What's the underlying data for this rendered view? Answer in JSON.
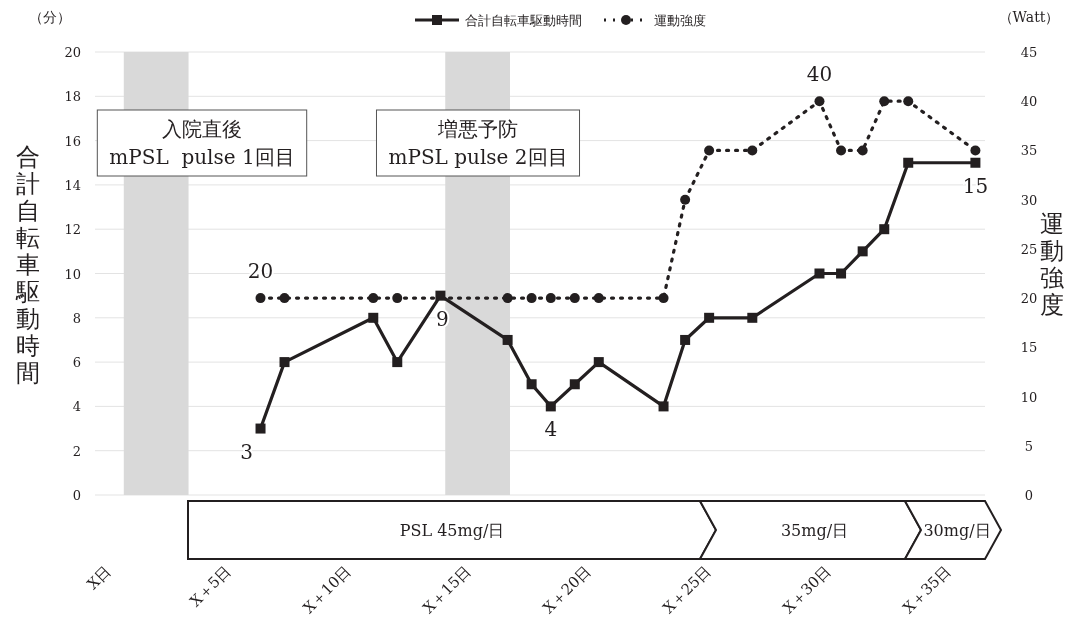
{
  "chart_data": {
    "type": "line",
    "xlim": [
      -0.7,
      36.4
    ],
    "xticks": [
      {
        "value": 0,
        "label": "X日"
      },
      {
        "value": 5,
        "label": "X＋5日"
      },
      {
        "value": 10,
        "label": "X＋10日"
      },
      {
        "value": 15,
        "label": "X＋15日"
      },
      {
        "value": 20,
        "label": "X＋20日"
      },
      {
        "value": 25,
        "label": "X＋25日"
      },
      {
        "value": 30,
        "label": "X＋30日"
      },
      {
        "value": 35,
        "label": "X＋35日"
      }
    ],
    "ylim": [
      0,
      20
    ],
    "yticks": [
      0,
      2,
      4,
      6,
      8,
      10,
      12,
      14,
      16,
      18,
      20
    ],
    "y2lim": [
      0,
      45
    ],
    "y2ticks": [
      0,
      5,
      10,
      15,
      20,
      25,
      30,
      35,
      40,
      45
    ],
    "ylabel": "合計自転車駆動時間",
    "y2label": "運動強度",
    "grid": "y",
    "legend": "top",
    "x": [
      6.2,
      7.2,
      10.9,
      11.9,
      13.7,
      16.5,
      17.5,
      18.3,
      19.3,
      20.3,
      23.0,
      23.9,
      24.9,
      26.7,
      29.5,
      30.4,
      31.3,
      32.2,
      33.2,
      36.0
    ],
    "series": [
      {
        "name": "合計自転車駆動時間",
        "color": "#231f20",
        "marker": "square",
        "line_style": "solid",
        "values": [
          3,
          6,
          8,
          6,
          9,
          7,
          5,
          4,
          5,
          6,
          4,
          7,
          8,
          8,
          10,
          10,
          11,
          12,
          15,
          15
        ],
        "value_labels": [
          "3",
          null,
          null,
          null,
          "9",
          null,
          null,
          "4",
          null,
          null,
          null,
          null,
          null,
          null,
          null,
          null,
          null,
          null,
          null,
          "15"
        ]
      },
      {
        "name": "運動強度",
        "color": "#231f20",
        "marker": "circle",
        "line_style": "dotted",
        "axis": "y2",
        "values": [
          20,
          20,
          20,
          20,
          null,
          20,
          20,
          20,
          20,
          20,
          20,
          30,
          35,
          35,
          40,
          35,
          35,
          40,
          40,
          35
        ],
        "value_labels": [
          "20",
          null,
          null,
          null,
          null,
          null,
          null,
          null,
          null,
          null,
          null,
          null,
          null,
          null,
          "40",
          null,
          null,
          null,
          null,
          null
        ]
      }
    ],
    "bands": [
      {
        "axis": "x",
        "from": 0.5,
        "to": 3.2,
        "color": "#d9d9d9"
      },
      {
        "axis": "x",
        "from": 13.9,
        "to": 16.6,
        "color": "#d9d9d9"
      }
    ],
    "annotations": [
      "入院直後\nmPSL  pulse 1回目",
      "増悪予防\nmPSL pulse 2回目",
      "（分）",
      "（Watt）",
      "PSL 45mg/日",
      "35mg/日",
      "30mg/日"
    ]
  }
}
